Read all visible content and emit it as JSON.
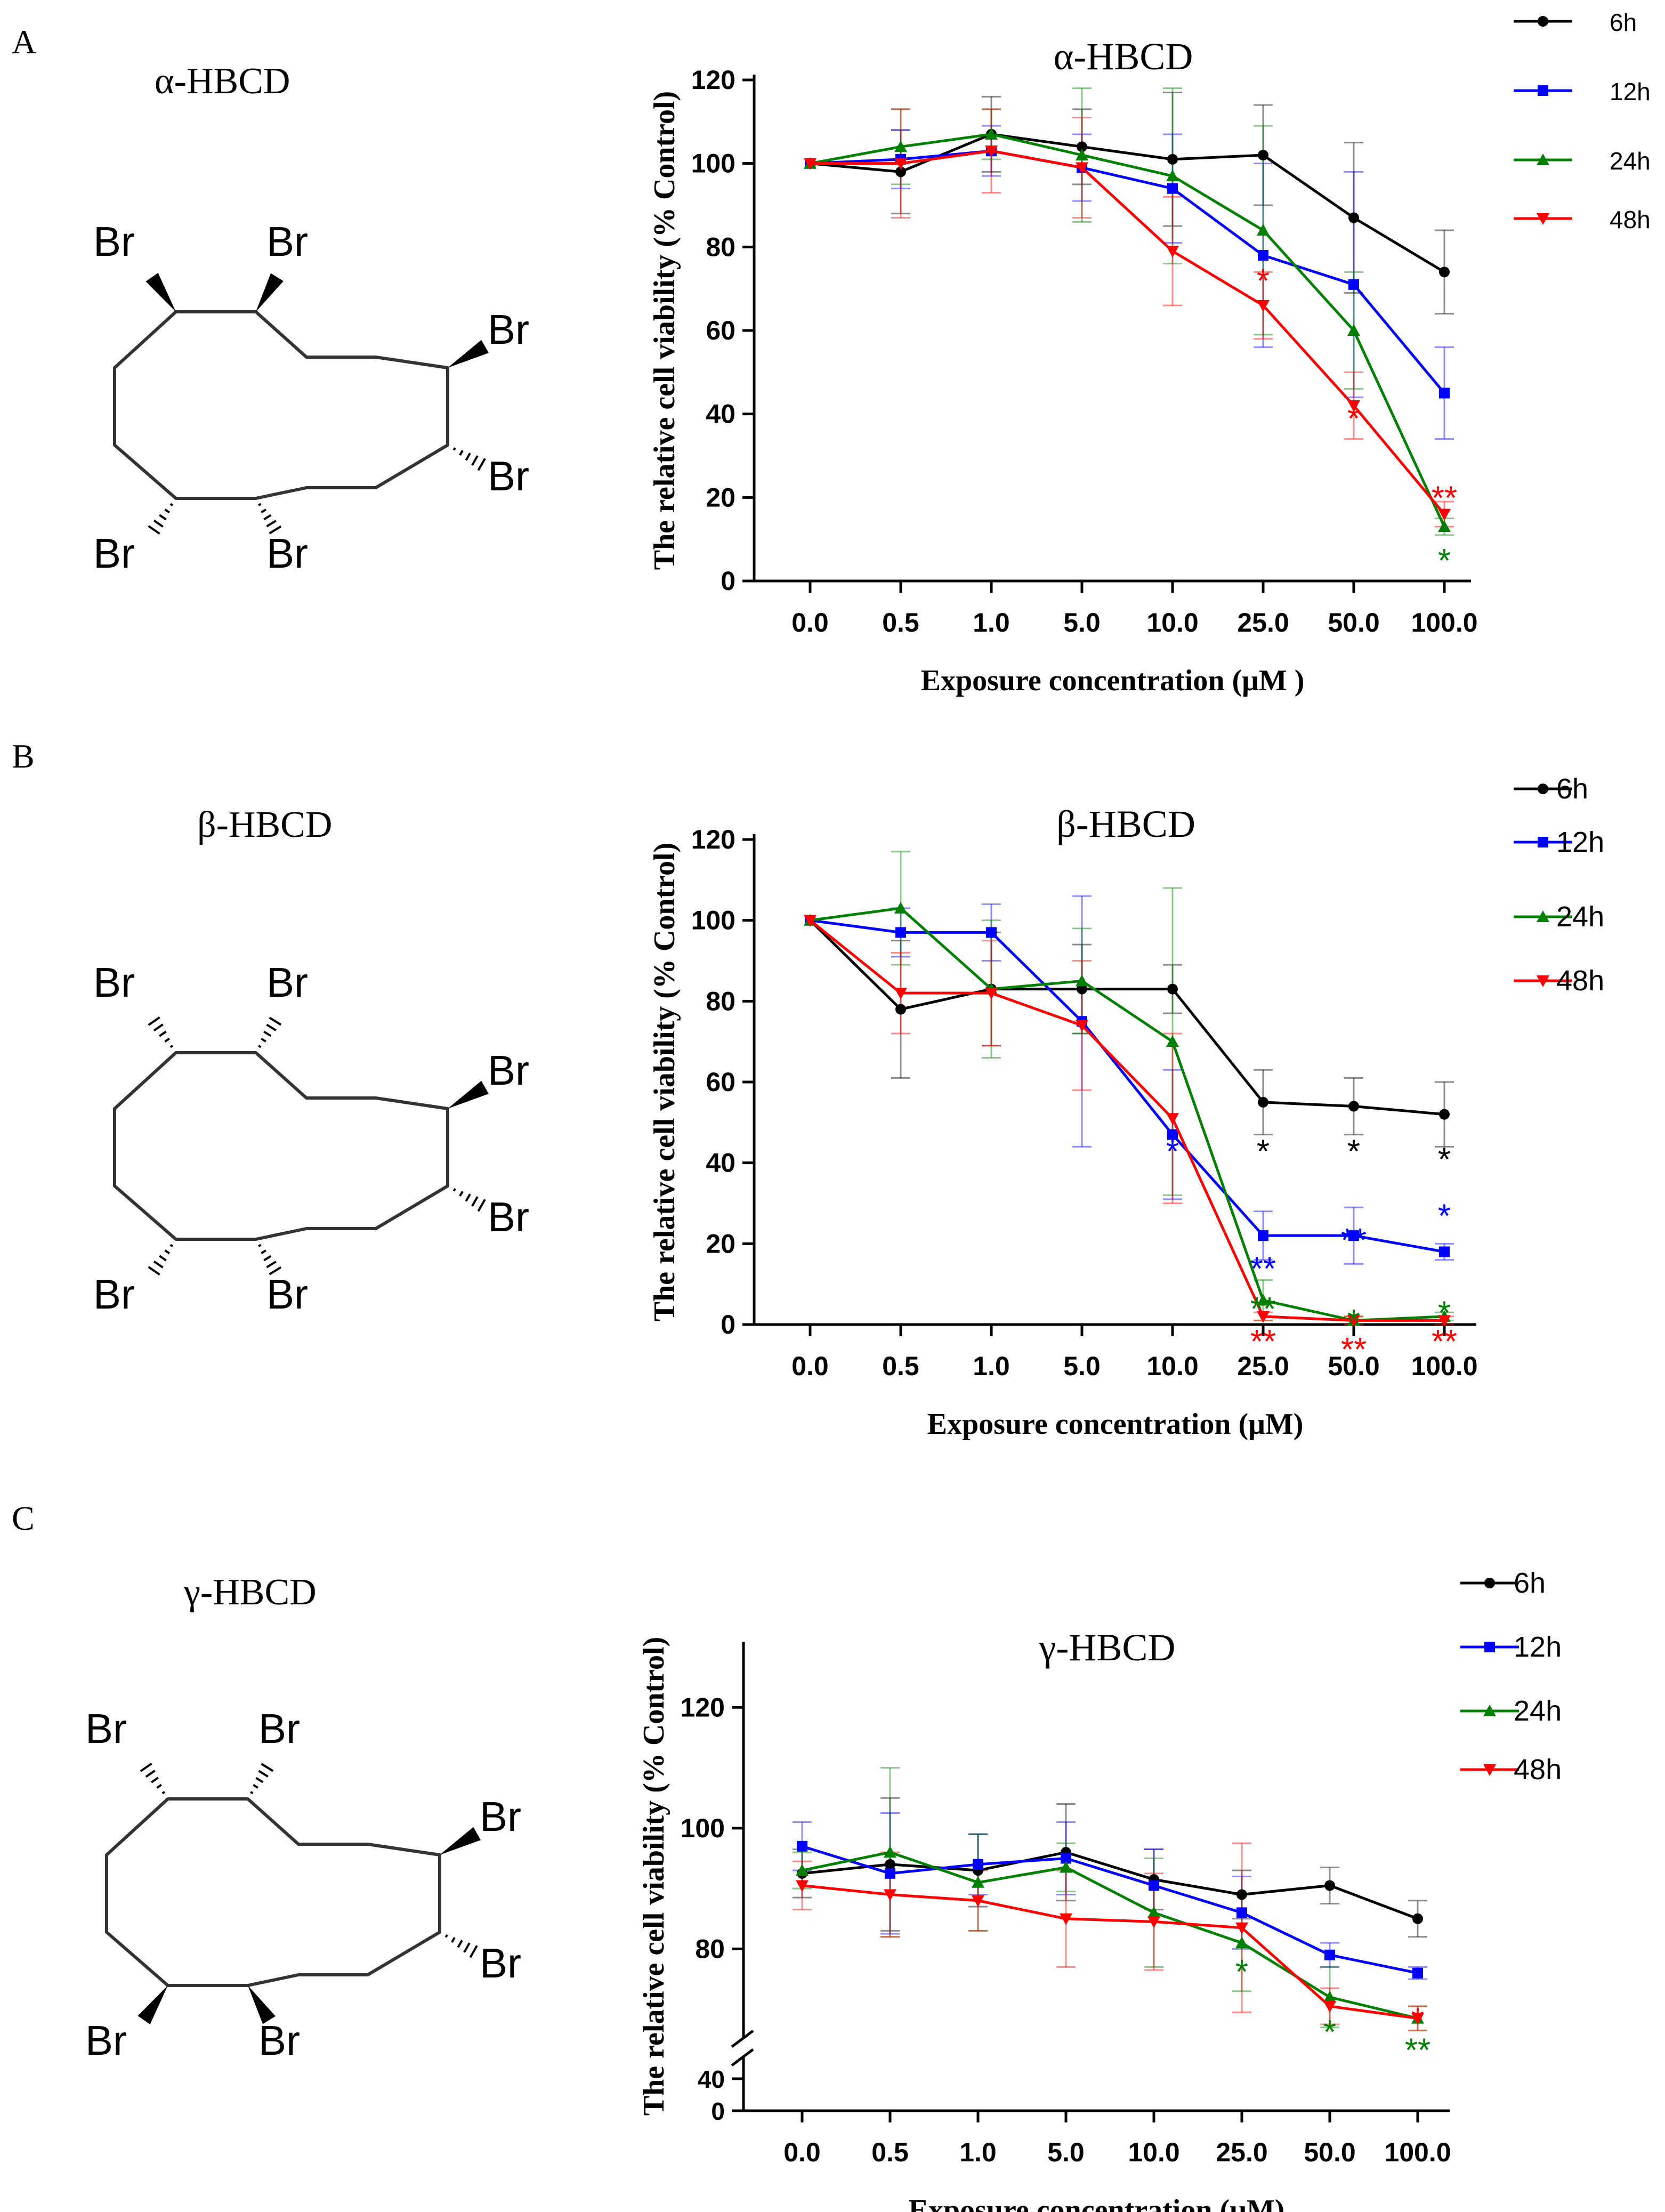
{
  "panels": [
    {
      "label": "A",
      "compound": "α-HBCD",
      "molecule": {
        "atom": "Br",
        "stereo": "alpha"
      },
      "chart": {
        "type": "line",
        "title": "α-HBCD",
        "xlabel": "Exposure concentration (μM )",
        "ylabel": "The relative cell viability (% Control)",
        "categories": [
          "0.0",
          "0.5",
          "1.0",
          "5.0",
          "10.0",
          "25.0",
          "50.0",
          "100.0"
        ],
        "ylim": [
          0,
          120
        ],
        "yticks": [
          "0",
          "20",
          "40",
          "60",
          "80",
          "100",
          "120"
        ],
        "series": [
          {
            "name": "6h",
            "color": "#000000",
            "marker": "circle",
            "values": [
              100,
              98,
              107,
              104,
              101,
              102,
              87,
              74
            ],
            "errors": [
              0,
              10,
              9,
              9,
              16,
              12,
              18,
              10
            ]
          },
          {
            "name": "12h",
            "color": "#0000ff",
            "marker": "square",
            "values": [
              100,
              101,
              103,
              99,
              94,
              78,
              71,
              45
            ],
            "errors": [
              0,
              7,
              6,
              8,
              13,
              22,
              27,
              11
            ]
          },
          {
            "name": "24h",
            "color": "#008000",
            "marker": "triangle-up",
            "values": [
              100,
              104,
              107,
              102,
              97,
              84,
              60,
              13
            ],
            "errors": [
              0,
              9,
              6,
              16,
              21,
              25,
              14,
              2
            ]
          },
          {
            "name": "48h",
            "color": "#ff0000",
            "marker": "triangle-down",
            "values": [
              100,
              100,
              103,
              99,
              79,
              66,
              42,
              16
            ],
            "errors": [
              0,
              13,
              10,
              12,
              13,
              8,
              8,
              3
            ]
          }
        ],
        "significance": [
          {
            "category": "25.0",
            "value": 73,
            "color": "#ff0000",
            "text": "*"
          },
          {
            "category": "50.0",
            "value": 40,
            "color": "#ff0000",
            "text": "*"
          },
          {
            "category": "100.0",
            "value": 21,
            "color": "#ff0000",
            "text": "**"
          },
          {
            "category": "100.0",
            "value": 6,
            "color": "#008000",
            "text": "*"
          }
        ]
      }
    },
    {
      "label": "B",
      "compound": "β-HBCD",
      "molecule": {
        "atom": "Br",
        "stereo": "beta"
      },
      "chart": {
        "type": "line",
        "title": "β-HBCD",
        "xlabel": "Exposure concentration (μM)",
        "ylabel": "The relative cell viability (% Control)",
        "categories": [
          "0.0",
          "0.5",
          "1.0",
          "5.0",
          "10.0",
          "25.0",
          "50.0",
          "100.0"
        ],
        "ylim": [
          0,
          120
        ],
        "yticks": [
          "0",
          "20",
          "40",
          "60",
          "80",
          "100",
          "120"
        ],
        "series": [
          {
            "name": "6h",
            "color": "#000000",
            "marker": "circle",
            "values": [
              100,
              78,
              83,
              83,
              83,
              55,
              54,
              52
            ],
            "errors": [
              0,
              17,
              14,
              11,
              6,
              8,
              7,
              8
            ]
          },
          {
            "name": "12h",
            "color": "#0000ff",
            "marker": "square",
            "values": [
              100,
              97,
              97,
              75,
              47,
              22,
              22,
              18
            ],
            "errors": [
              0,
              6,
              7,
              31,
              16,
              6,
              7,
              2
            ]
          },
          {
            "name": "24h",
            "color": "#008000",
            "marker": "triangle-up",
            "values": [
              100,
              103,
              83,
              85,
              70,
              6,
              1,
              2
            ],
            "errors": [
              0,
              14,
              17,
              13,
              38,
              5,
              1,
              1
            ]
          },
          {
            "name": "48h",
            "color": "#ff0000",
            "marker": "triangle-down",
            "values": [
              100,
              82,
              82,
              74,
              51,
              2,
              1,
              1
            ],
            "errors": [
              0,
              10,
              13,
              16,
              21,
              1,
              1,
              1
            ]
          }
        ],
        "significance": [
          {
            "category": "25.0",
            "value": 44,
            "color": "#000000",
            "text": "*"
          },
          {
            "category": "50.0",
            "value": 44,
            "color": "#000000",
            "text": "*"
          },
          {
            "category": "100.0",
            "value": 42,
            "color": "#000000",
            "text": "*"
          },
          {
            "category": "10.0",
            "value": 44,
            "color": "#0000ff",
            "text": "*"
          },
          {
            "category": "25.0",
            "value": 15,
            "color": "#0000ff",
            "text": "**"
          },
          {
            "category": "50.0",
            "value": 22,
            "color": "#0000ff",
            "text": "**"
          },
          {
            "category": "100.0",
            "value": 28,
            "color": "#0000ff",
            "text": "*"
          },
          {
            "category": "25.0",
            "value": 5,
            "color": "#008000",
            "text": "**"
          },
          {
            "category": "50.0",
            "value": 2,
            "color": "#008000",
            "text": "*"
          },
          {
            "category": "100.0",
            "value": 4,
            "color": "#008000",
            "text": "*"
          },
          {
            "category": "25.0",
            "value": -3,
            "color": "#ff0000",
            "text": "**"
          },
          {
            "category": "50.0",
            "value": -5,
            "color": "#ff0000",
            "text": "**"
          },
          {
            "category": "100.0",
            "value": -3,
            "color": "#ff0000",
            "text": "**"
          }
        ]
      }
    },
    {
      "label": "C",
      "compound": "γ-HBCD",
      "molecule": {
        "atom": "Br",
        "stereo": "gamma"
      },
      "chart": {
        "type": "line",
        "title": "γ-HBCD",
        "xlabel": "Exposure concentration (μM)",
        "ylabel": "The relative cell viability (% Control)",
        "categories": [
          "0.0",
          "0.5",
          "1.0",
          "5.0",
          "10.0",
          "25.0",
          "50.0",
          "100.0"
        ],
        "ylim": [
          66,
          130
        ],
        "axis_break": {
          "lower_ticks": [
            "0",
            "40"
          ],
          "upper_ticks": [
            "80",
            "100",
            "120"
          ]
        },
        "series": [
          {
            "name": "6h",
            "color": "#000000",
            "marker": "circle",
            "values": [
              92.5,
              94,
              93,
              96,
              91.5,
              89,
              90.5,
              85
            ],
            "errors": [
              4,
              11,
              6,
              8,
              5,
              4,
              3,
              3
            ]
          },
          {
            "name": "12h",
            "color": "#0000ff",
            "marker": "square",
            "values": [
              97,
              92.5,
              94,
              95,
              90.5,
              86,
              79,
              76
            ],
            "errors": [
              4,
              10,
              5,
              6,
              6,
              6,
              2,
              1
            ]
          },
          {
            "name": "24h",
            "color": "#008000",
            "marker": "triangle-up",
            "values": [
              93,
              96,
              91,
              93.5,
              86,
              81,
              72,
              68.5
            ],
            "errors": [
              3,
              14,
              8,
              4,
              9,
              8,
              5,
              2
            ]
          },
          {
            "name": "48h",
            "color": "#ff0000",
            "marker": "triangle-down",
            "values": [
              90.5,
              89,
              88,
              85,
              84.5,
              83.5,
              70.5,
              68.5
            ],
            "errors": [
              4,
              7,
              5,
              8,
              8,
              14,
              3,
              2
            ]
          }
        ],
        "significance": [
          {
            "category": "25.0",
            "value": 77,
            "color": "#008000",
            "text": "*"
          },
          {
            "category": "50.0",
            "value": 67,
            "color": "#008000",
            "text": "*"
          },
          {
            "category": "100.0",
            "value": 64,
            "color": "#008000",
            "text": "**"
          },
          {
            "category": "100.0",
            "value": 69,
            "color": "#ff0000",
            "text": "*"
          }
        ]
      }
    }
  ]
}
